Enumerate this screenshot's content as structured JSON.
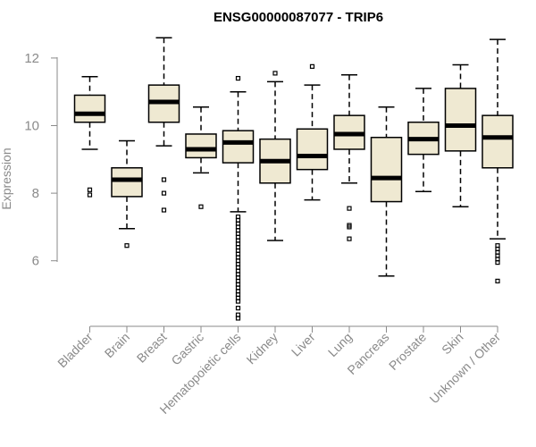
{
  "chart_data": {
    "type": "boxplot",
    "title": "ENSG00000087077 - TRIP6",
    "xlabel": "",
    "ylabel": "Expression",
    "ylim": [
      4.0,
      13.0
    ],
    "yticks": [
      6,
      8,
      10,
      12
    ],
    "box_fill": "#efe9d2",
    "series": [
      {
        "name": "Bladder",
        "whisker_low": 9.3,
        "q1": 10.1,
        "median": 10.35,
        "q3": 10.9,
        "whisker_high": 11.45,
        "outliers": [
          8.1,
          7.95
        ]
      },
      {
        "name": "Brain",
        "whisker_low": 6.95,
        "q1": 7.9,
        "median": 8.4,
        "q3": 8.75,
        "whisker_high": 9.55,
        "outliers": [
          6.45
        ]
      },
      {
        "name": "Breast",
        "whisker_low": 9.4,
        "q1": 10.1,
        "median": 10.7,
        "q3": 11.2,
        "whisker_high": 12.6,
        "outliers": [
          8.4,
          8.0,
          7.5
        ]
      },
      {
        "name": "Gastric",
        "whisker_low": 8.6,
        "q1": 9.05,
        "median": 9.3,
        "q3": 9.75,
        "whisker_high": 10.55,
        "outliers": [
          7.6
        ]
      },
      {
        "name": "Hematopoietic cells",
        "whisker_low": 7.45,
        "q1": 8.9,
        "median": 9.5,
        "q3": 9.85,
        "whisker_high": 11.0,
        "outliers": [
          11.4,
          7.3,
          7.2,
          7.1,
          7.0,
          6.9,
          6.8,
          6.7,
          6.6,
          6.5,
          6.4,
          6.3,
          6.2,
          6.1,
          6.0,
          5.9,
          5.8,
          5.7,
          5.6,
          5.5,
          5.4,
          5.3,
          5.2,
          5.1,
          5.0,
          4.9,
          4.8,
          4.6,
          4.4,
          4.3
        ]
      },
      {
        "name": "Kidney",
        "whisker_low": 6.6,
        "q1": 8.3,
        "median": 8.95,
        "q3": 9.6,
        "whisker_high": 11.3,
        "outliers": [
          11.55
        ]
      },
      {
        "name": "Liver",
        "whisker_low": 7.8,
        "q1": 8.7,
        "median": 9.1,
        "q3": 9.9,
        "whisker_high": 11.2,
        "outliers": [
          11.75
        ]
      },
      {
        "name": "Lung",
        "whisker_low": 8.3,
        "q1": 9.3,
        "median": 9.75,
        "q3": 10.3,
        "whisker_high": 11.5,
        "outliers": [
          7.55,
          7.05,
          7.0,
          6.65
        ]
      },
      {
        "name": "Pancreas",
        "whisker_low": 5.55,
        "q1": 7.75,
        "median": 8.45,
        "q3": 9.65,
        "whisker_high": 10.55,
        "outliers": []
      },
      {
        "name": "Prostate",
        "whisker_low": 8.05,
        "q1": 9.15,
        "median": 9.6,
        "q3": 10.1,
        "whisker_high": 11.1,
        "outliers": []
      },
      {
        "name": "Skin",
        "whisker_low": 7.6,
        "q1": 9.25,
        "median": 10.0,
        "q3": 11.1,
        "whisker_high": 11.8,
        "outliers": []
      },
      {
        "name": "Unknown / Other",
        "whisker_low": 6.65,
        "q1": 8.75,
        "median": 9.65,
        "q3": 10.3,
        "whisker_high": 12.55,
        "outliers": [
          6.45,
          6.35,
          6.25,
          6.15,
          6.05,
          5.95,
          5.4
        ]
      }
    ]
  }
}
